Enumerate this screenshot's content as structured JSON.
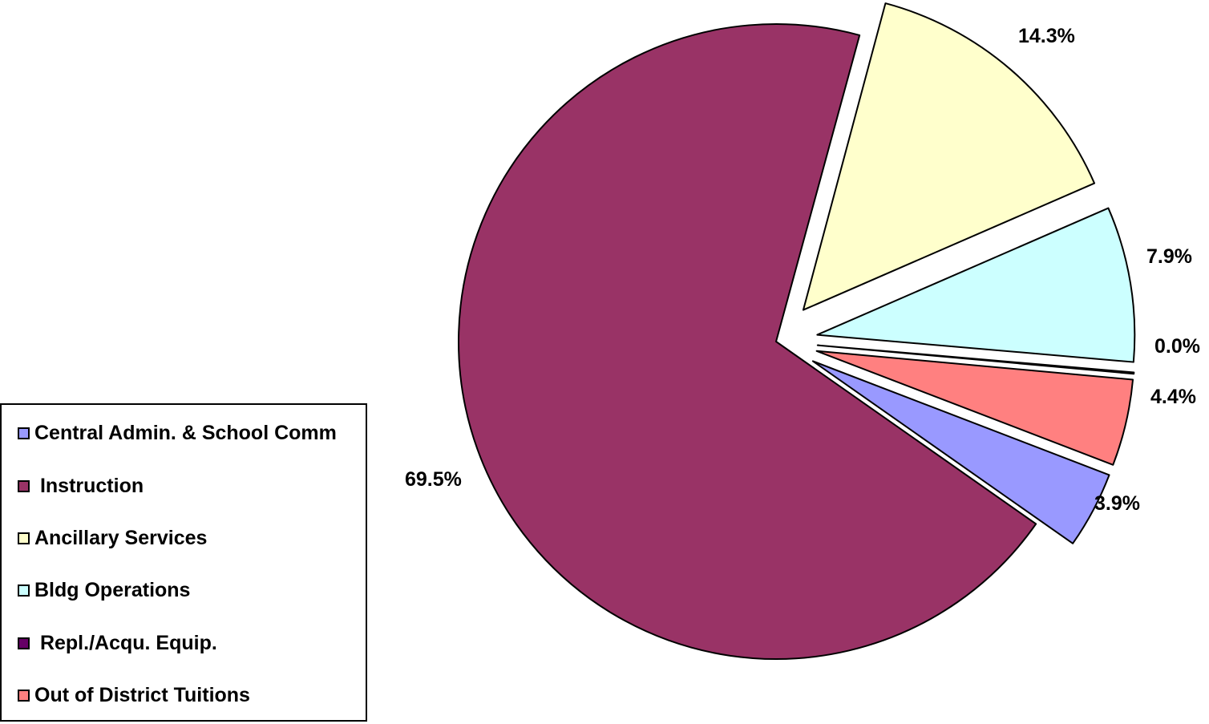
{
  "chart_data": {
    "type": "pie",
    "title": "",
    "legend_position": "bottom-left",
    "slices": [
      {
        "name": "Central Admin. & School Comm",
        "legend_label": "Central Admin. & School Comm",
        "value": 3.9,
        "value_label": "3.9%",
        "color": "#9999ff",
        "exploded": true
      },
      {
        "name": "Instruction",
        "legend_label": " Instruction",
        "value": 69.5,
        "value_label": "69.5%",
        "color": "#993366",
        "exploded": false
      },
      {
        "name": "Ancillary Services",
        "legend_label": "Ancillary Services",
        "value": 14.3,
        "value_label": "14.3%",
        "color": "#ffffcc",
        "exploded": true
      },
      {
        "name": "Bldg Operations",
        "legend_label": "Bldg Operations",
        "value": 7.9,
        "value_label": "7.9%",
        "color": "#ccffff",
        "exploded": true
      },
      {
        "name": "Repl./Acqu. Equip.",
        "legend_label": " Repl./Acqu. Equip.",
        "value": 0.0,
        "value_label": "0.0%",
        "color": "#660066",
        "exploded": true
      },
      {
        "name": "Out of District Tuitions",
        "legend_label": "Out of District Tuitions",
        "value": 4.4,
        "value_label": "4.4%",
        "color": "#ff8080",
        "exploded": true
      }
    ]
  }
}
